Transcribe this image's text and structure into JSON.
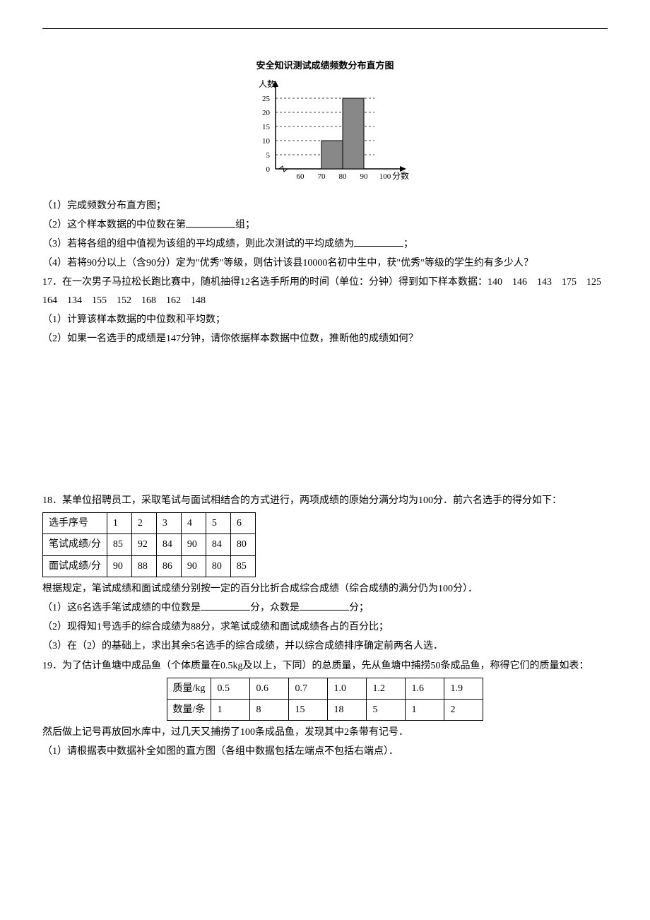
{
  "histogram": {
    "title": "安全知识测试成绩频数分布直方图",
    "y_label": "人数",
    "x_label": "分数",
    "y_ticks": [
      0,
      5,
      10,
      15,
      20,
      25
    ],
    "x_ticks": [
      60,
      70,
      80,
      90,
      100
    ],
    "bars": [
      {
        "x_start": 70,
        "x_end": 80,
        "value": 10
      },
      {
        "x_start": 80,
        "x_end": 90,
        "value": 25
      }
    ],
    "bar_color": "#888888",
    "grid_color": "#000000",
    "axis_color": "#000000"
  },
  "q16": {
    "p1": "（1）完成频数分布直方图；",
    "p2_pre": "（2）这个样本数据的中位数在第",
    "p2_post": "组；",
    "p3_pre": "（3）若将各组的组中值视为该组的平均成绩，则此次测试的平均成绩为",
    "p3_post": "；",
    "p4": "（4）若将90分以上（含90分）定为\"优秀\"等级，则估计该县10000名初中生中，获\"优秀\"等级的学生约有多少人？"
  },
  "q17": {
    "intro": "17．在一次男子马拉松长跑比赛中，随机抽得12名选手所用的时间（单位：分钟）得到如下样本数据：140　146　143　175　125　164　134　155　152　168　162　148",
    "p1": "（1）计算该样本数据的中位数和平均数；",
    "p2": "（2）如果一名选手的成绩是147分钟，请你依据样本数据中位数，推断他的成绩如何？"
  },
  "q18": {
    "intro": "18．某单位招聘员工，采取笔试与面试相结合的方式进行，两项成绩的原始分满分均为100分．前六名选手的得分如下：",
    "table": {
      "rows": [
        [
          "选手序号",
          "1",
          "2",
          "3",
          "4",
          "5",
          "6"
        ],
        [
          "笔试成绩/分",
          "85",
          "92",
          "84",
          "90",
          "84",
          "80"
        ],
        [
          "面试成绩/分",
          "90",
          "88",
          "86",
          "90",
          "80",
          "85"
        ]
      ]
    },
    "after_table": "根据规定，笔试成绩和面试成绩分别按一定的百分比折合成综合成绩（综合成绩的满分仍为100分）．",
    "p1_pre": "（1）这6名选手笔试成绩的中位数是",
    "p1_mid": "分，众数是",
    "p1_post": "分；",
    "p2": "（2）现得知1号选手的综合成绩为88分，求笔试成绩和面试成绩各占的百分比；",
    "p3": "（3）在（2）的基础上，求出其余5名选手的综合成绩，并以综合成绩排序确定前两名人选．"
  },
  "q19": {
    "intro": "19．为了估计鱼塘中成品鱼（个体质量在0.5kg及以上，下同）的总质量，先从鱼塘中捕捞50条成品鱼，称得它们的质量如表：",
    "table": {
      "rows": [
        [
          "质量/kg",
          "0.5",
          "0.6",
          "0.7",
          "1.0",
          "1.2",
          "1.6",
          "1.9"
        ],
        [
          "数量/条",
          "1",
          "8",
          "15",
          "18",
          "5",
          "1",
          "2"
        ]
      ]
    },
    "after_table": "然后做上记号再放回水库中，过几天又捕捞了100条成品鱼，发现其中2条带有记号．",
    "p1": "（1）请根据表中数据补全如图的直方图（各组中数据包括左端点不包括右端点）．"
  }
}
